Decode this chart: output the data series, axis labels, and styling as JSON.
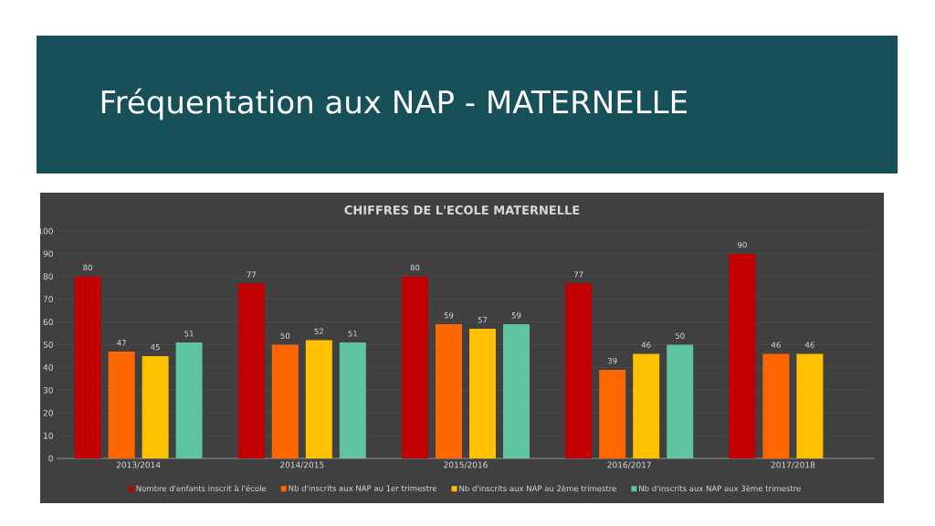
{
  "chart_data": {
    "type": "bar",
    "title": "Fréquentation aux NAP - MATERNELLE",
    "subtitle": "CHIFFRES DE L'ECOLE MATERNELLE",
    "categories": [
      "2013/2014",
      "2014/2015",
      "2015/2016",
      "2016/2017",
      "2017/2018"
    ],
    "series": [
      {
        "name": "Nombre d'enfants inscrit à l'école",
        "color": "#c00000",
        "values": [
          80,
          77,
          80,
          77,
          90
        ]
      },
      {
        "name": "Nb d'inscrits aux NAP au 1er trimestre",
        "color": "#ff6600",
        "values": [
          47,
          50,
          59,
          39,
          46
        ]
      },
      {
        "name": "Nb d'inscrits aux NAP au 2ème trimestre",
        "color": "#ffc000",
        "values": [
          45,
          52,
          57,
          46,
          46
        ]
      },
      {
        "name": "Nb d'inscrits aux NAP aux 3ème trimestre",
        "color": "#5fc4a0",
        "values": [
          51,
          51,
          59,
          50,
          null
        ]
      }
    ],
    "ylim": [
      0,
      100
    ],
    "yticks": [
      0,
      10,
      20,
      30,
      40,
      50,
      60,
      70,
      80,
      90,
      100
    ],
    "grid": "y",
    "legend": "bottom",
    "data_labels": true
  }
}
